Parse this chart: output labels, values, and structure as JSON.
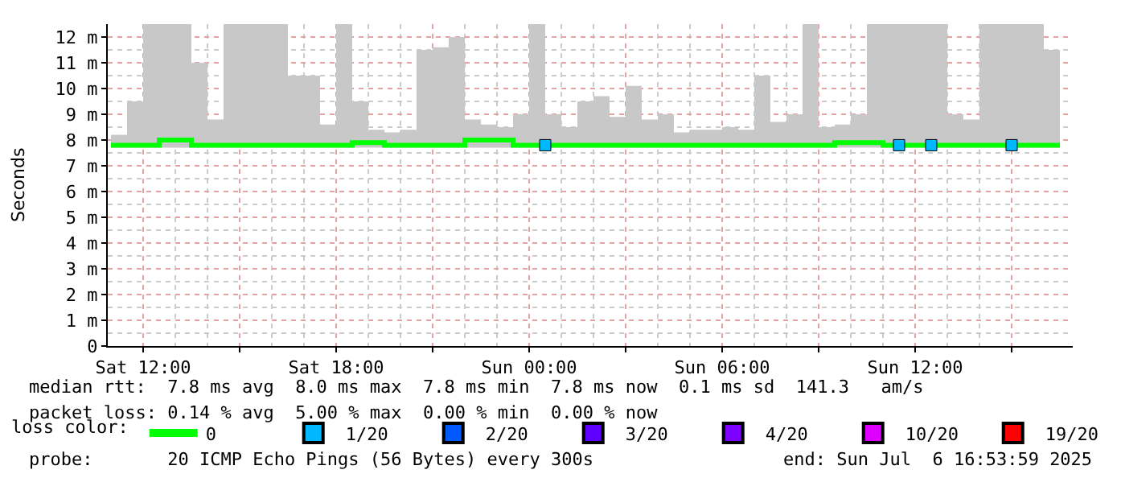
{
  "chart_data": {
    "type": "line",
    "ylabel": "Seconds",
    "legend_title": "loss color:",
    "legend": "bottom",
    "grid": true,
    "x": [
      "2025-07-05T11:00",
      "2025-07-05T11:30",
      "2025-07-05T12:00",
      "2025-07-05T12:30",
      "2025-07-05T13:00",
      "2025-07-05T13:30",
      "2025-07-05T14:00",
      "2025-07-05T14:30",
      "2025-07-05T15:00",
      "2025-07-05T15:30",
      "2025-07-05T16:00",
      "2025-07-05T16:30",
      "2025-07-05T17:00",
      "2025-07-05T17:30",
      "2025-07-05T18:00",
      "2025-07-05T18:30",
      "2025-07-05T19:00",
      "2025-07-05T19:30",
      "2025-07-05T20:00",
      "2025-07-05T20:30",
      "2025-07-05T21:00",
      "2025-07-05T21:30",
      "2025-07-05T22:00",
      "2025-07-05T22:30",
      "2025-07-05T23:00",
      "2025-07-05T23:30",
      "2025-07-06T00:00",
      "2025-07-06T00:30",
      "2025-07-06T01:00",
      "2025-07-06T01:30",
      "2025-07-06T02:00",
      "2025-07-06T02:30",
      "2025-07-06T03:00",
      "2025-07-06T03:30",
      "2025-07-06T04:00",
      "2025-07-06T04:30",
      "2025-07-06T05:00",
      "2025-07-06T05:30",
      "2025-07-06T06:00",
      "2025-07-06T06:30",
      "2025-07-06T07:00",
      "2025-07-06T07:30",
      "2025-07-06T08:00",
      "2025-07-06T08:30",
      "2025-07-06T09:00",
      "2025-07-06T09:30",
      "2025-07-06T10:00",
      "2025-07-06T10:30",
      "2025-07-06T11:00",
      "2025-07-06T11:30",
      "2025-07-06T12:00",
      "2025-07-06T12:30",
      "2025-07-06T13:00",
      "2025-07-06T13:30",
      "2025-07-06T14:00",
      "2025-07-06T14:30",
      "2025-07-06T15:00",
      "2025-07-06T15:30",
      "2025-07-06T16:00",
      "2025-07-06T16:30"
    ],
    "xlim": [
      "2025-07-05T10:54",
      "2025-07-06T16:54"
    ],
    "xticks": [
      {
        "value": "2025-07-05T12:00",
        "label": "Sat 12:00"
      },
      {
        "value": "2025-07-05T15:00",
        "label": null
      },
      {
        "value": "2025-07-05T18:00",
        "label": "Sat 18:00"
      },
      {
        "value": "2025-07-05T21:00",
        "label": null
      },
      {
        "value": "2025-07-06T00:00",
        "label": "Sun 00:00"
      },
      {
        "value": "2025-07-06T03:00",
        "label": null
      },
      {
        "value": "2025-07-06T06:00",
        "label": "Sun 06:00"
      },
      {
        "value": "2025-07-06T09:00",
        "label": null
      },
      {
        "value": "2025-07-06T12:00",
        "label": "Sun 12:00"
      },
      {
        "value": "2025-07-06T15:00",
        "label": null
      }
    ],
    "ylim": [
      0,
      12.5
    ],
    "yticks": [
      0,
      {
        "value": 1,
        "label": "1 m"
      },
      {
        "value": 2,
        "label": "2 m"
      },
      {
        "value": 3,
        "label": "3 m"
      },
      {
        "value": 4,
        "label": "4 m"
      },
      {
        "value": 5,
        "label": "5 m"
      },
      {
        "value": 6,
        "label": "6 m"
      },
      {
        "value": 7,
        "label": "7 m"
      },
      {
        "value": 8,
        "label": "8 m"
      },
      {
        "value": 9,
        "label": "9 m"
      },
      {
        "value": 10,
        "label": "10 m"
      },
      {
        "value": 11,
        "label": "11 m"
      },
      {
        "value": 12,
        "label": "12 m"
      }
    ],
    "series": [
      {
        "name": "0",
        "color": "#00ff00",
        "values": [
          7.8,
          7.8,
          7.8,
          8.0,
          8.0,
          7.8,
          7.8,
          7.8,
          7.8,
          7.8,
          7.8,
          7.8,
          7.8,
          7.8,
          7.8,
          7.9,
          7.9,
          7.8,
          7.8,
          7.8,
          7.8,
          7.8,
          8.0,
          8.0,
          8.0,
          7.8,
          7.8,
          7.8,
          7.8,
          7.8,
          7.8,
          7.8,
          7.8,
          7.8,
          7.8,
          7.8,
          7.8,
          7.8,
          7.8,
          7.8,
          7.8,
          7.8,
          7.8,
          7.8,
          7.8,
          7.9,
          7.9,
          7.9,
          7.8,
          7.8,
          7.8,
          7.8,
          7.8,
          7.8,
          7.8,
          7.8,
          7.8,
          7.8,
          7.8,
          7.8
        ],
        "lower": [
          7.7,
          7.7,
          7.7,
          7.7,
          7.7,
          7.7,
          7.7,
          7.7,
          7.7,
          7.7,
          7.7,
          7.7,
          7.7,
          7.7,
          7.7,
          7.7,
          7.7,
          7.7,
          7.7,
          7.7,
          7.7,
          7.7,
          7.7,
          7.7,
          7.7,
          7.7,
          7.7,
          7.7,
          7.7,
          7.7,
          7.7,
          7.7,
          7.7,
          7.7,
          7.7,
          7.7,
          7.7,
          7.7,
          7.7,
          7.7,
          7.7,
          7.7,
          7.7,
          7.7,
          7.7,
          7.7,
          7.7,
          7.7,
          7.7,
          7.7,
          7.7,
          7.7,
          7.7,
          7.7,
          7.7,
          7.7,
          7.7,
          7.7,
          7.7,
          7.7
        ],
        "upper": [
          8.2,
          9.5,
          12.5,
          12.5,
          12.5,
          11.0,
          8.8,
          12.5,
          12.5,
          12.5,
          12.5,
          10.5,
          10.5,
          8.6,
          12.5,
          9.5,
          8.4,
          8.3,
          8.4,
          11.5,
          11.6,
          12.0,
          8.8,
          8.6,
          8.5,
          9.0,
          12.5,
          9.0,
          8.5,
          9.5,
          9.7,
          8.9,
          10.1,
          8.8,
          9.0,
          8.3,
          8.4,
          8.4,
          8.5,
          8.4,
          10.5,
          8.7,
          9.0,
          12.5,
          8.5,
          8.6,
          9.0,
          12.5,
          12.5,
          12.5,
          12.5,
          12.5,
          9.0,
          8.8,
          12.5,
          12.5,
          12.5,
          12.5,
          11.5,
          10.8
        ]
      },
      {
        "name": "1/20",
        "color": "#00b8ff",
        "type": "scatter",
        "marker": "square",
        "values": [
          null,
          null,
          null,
          null,
          null,
          null,
          null,
          null,
          null,
          null,
          null,
          null,
          null,
          null,
          null,
          null,
          null,
          null,
          null,
          null,
          null,
          null,
          null,
          null,
          null,
          null,
          null,
          7.8,
          null,
          null,
          null,
          null,
          null,
          null,
          null,
          null,
          null,
          null,
          null,
          null,
          null,
          null,
          null,
          null,
          null,
          null,
          null,
          null,
          null,
          7.8,
          null,
          7.8,
          null,
          null,
          null,
          null,
          7.8,
          null,
          null,
          null
        ]
      },
      {
        "name": "2/20",
        "color": "#0059ff",
        "type": "scatter",
        "marker": "square",
        "values": [
          null,
          null,
          null,
          null,
          null,
          null,
          null,
          null,
          null,
          null,
          null,
          null,
          null,
          null,
          null,
          null,
          null,
          null,
          null,
          null,
          null,
          null,
          null,
          null,
          null,
          null,
          null,
          null,
          null,
          null,
          null,
          null,
          null,
          null,
          null,
          null,
          null,
          null,
          null,
          null,
          null,
          null,
          null,
          null,
          null,
          null,
          null,
          null,
          null,
          null,
          null,
          null,
          null,
          null,
          null,
          null,
          null,
          null,
          null,
          null
        ]
      },
      {
        "name": "3/20",
        "color": "#5e00ff",
        "type": "scatter",
        "marker": "square",
        "values": [
          null,
          null,
          null,
          null,
          null,
          null,
          null,
          null,
          null,
          null,
          null,
          null,
          null,
          null,
          null,
          null,
          null,
          null,
          null,
          null,
          null,
          null,
          null,
          null,
          null,
          null,
          null,
          null,
          null,
          null,
          null,
          null,
          null,
          null,
          null,
          null,
          null,
          null,
          null,
          null,
          null,
          null,
          null,
          null,
          null,
          null,
          null,
          null,
          null,
          null,
          null,
          null,
          null,
          null,
          null,
          null,
          null,
          null,
          null,
          null
        ]
      },
      {
        "name": "4/20",
        "color": "#7e00ff",
        "type": "scatter",
        "marker": "square",
        "values": [
          null,
          null,
          null,
          null,
          null,
          null,
          null,
          null,
          null,
          null,
          null,
          null,
          null,
          null,
          null,
          null,
          null,
          null,
          null,
          null,
          null,
          null,
          null,
          null,
          null,
          null,
          null,
          null,
          null,
          null,
          null,
          null,
          null,
          null,
          null,
          null,
          null,
          null,
          null,
          null,
          null,
          null,
          null,
          null,
          null,
          null,
          null,
          null,
          null,
          null,
          null,
          null,
          null,
          null,
          null,
          null,
          null,
          null,
          null,
          null
        ]
      },
      {
        "name": "10/20",
        "color": "#dd00ff",
        "type": "scatter",
        "marker": "square",
        "values": [
          null,
          null,
          null,
          null,
          null,
          null,
          null,
          null,
          null,
          null,
          null,
          null,
          null,
          null,
          null,
          null,
          null,
          null,
          null,
          null,
          null,
          null,
          null,
          null,
          null,
          null,
          null,
          null,
          null,
          null,
          null,
          null,
          null,
          null,
          null,
          null,
          null,
          null,
          null,
          null,
          null,
          null,
          null,
          null,
          null,
          null,
          null,
          null,
          null,
          null,
          null,
          null,
          null,
          null,
          null,
          null,
          null,
          null,
          null,
          null
        ]
      },
      {
        "name": "19/20",
        "color": "#ff0000",
        "type": "scatter",
        "marker": "square",
        "values": [
          null,
          null,
          null,
          null,
          null,
          null,
          null,
          null,
          null,
          null,
          null,
          null,
          null,
          null,
          null,
          null,
          null,
          null,
          null,
          null,
          null,
          null,
          null,
          null,
          null,
          null,
          null,
          null,
          null,
          null,
          null,
          null,
          null,
          null,
          null,
          null,
          null,
          null,
          null,
          null,
          null,
          null,
          null,
          null,
          null,
          null,
          null,
          null,
          null,
          null,
          null,
          null,
          null,
          null,
          null,
          null,
          null,
          null,
          null,
          null
        ]
      }
    ],
    "annotations": [
      "median rtt:  7.8 ms avg  8.0 ms max  7.8 ms min  7.8 ms now  0.1 ms sd  141.3   am/s",
      "packet loss: 0.14 % avg  5.00 % max  0.00 % min  0.00 % now",
      "probe:       20 ICMP Echo Pings (56 Bytes) every 300s",
      "end: Sun Jul  6 16:53:59 2025"
    ]
  }
}
